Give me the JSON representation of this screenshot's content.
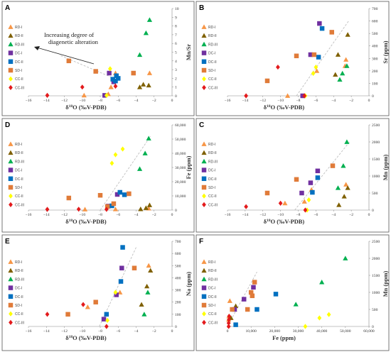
{
  "figure": {
    "series_styles": [
      {
        "name": "RD-I",
        "marker": "triangle",
        "color": "#F79646"
      },
      {
        "name": "RD-II",
        "marker": "triangle",
        "color": "#7F6000"
      },
      {
        "name": "RD-III",
        "marker": "triangle",
        "color": "#00B050"
      },
      {
        "name": "DC-I",
        "marker": "square",
        "color": "#7030A0"
      },
      {
        "name": "DC-II",
        "marker": "square",
        "color": "#0070C0"
      },
      {
        "name": "SD-I",
        "marker": "square",
        "color": "#E07B39"
      },
      {
        "name": "CC-II",
        "marker": "diamond",
        "color": "#FFFF00"
      },
      {
        "name": "CC-III",
        "marker": "diamond",
        "color": "#E31A1C"
      }
    ]
  },
  "chart_data": [
    {
      "id": "A",
      "type": "scatter",
      "xlabel": "δ18O (‰V-PDB)",
      "ylabel": "Mn/Sr",
      "xlim": [
        -16,
        0
      ],
      "ylim": [
        0,
        10
      ],
      "xticks": [
        "−16",
        "−14",
        "−12",
        "−10",
        "−8",
        "−6",
        "−4",
        "−2"
      ],
      "yticks": [
        "0",
        "1",
        "2",
        "3",
        "4",
        "5",
        "6",
        "7",
        "8",
        "9",
        "10"
      ],
      "annotation": "Increasing degree of diagenetic alteration",
      "series": [
        {
          "name": "RD-I",
          "points": [
            [
              -9.8,
              0.05
            ],
            [
              -7.1,
              0.2
            ],
            [
              -6.3,
              2.6
            ],
            [
              -2.5,
              2.6
            ],
            [
              -6.8,
              1.0
            ]
          ]
        },
        {
          "name": "RD-II",
          "points": [
            [
              -3.6,
              1.0
            ],
            [
              -3.2,
              1.3
            ],
            [
              -2.6,
              1.2
            ]
          ]
        },
        {
          "name": "RD-III",
          "points": [
            [
              -3.6,
              4.7
            ],
            [
              -2.9,
              7.2
            ],
            [
              -2.5,
              8.7
            ]
          ]
        },
        {
          "name": "DC-I",
          "points": [
            [
              -7.5,
              0.05
            ],
            [
              -7.0,
              2.6
            ],
            [
              -6.5,
              1.6
            ]
          ]
        },
        {
          "name": "DC-II",
          "points": [
            [
              -6.6,
              1.9
            ],
            [
              -6.3,
              1.7
            ],
            [
              -6.0,
              2.0
            ],
            [
              -6.2,
              2.3
            ]
          ]
        },
        {
          "name": "SD-I",
          "points": [
            [
              -11.5,
              4.0
            ],
            [
              -8.5,
              2.8
            ],
            [
              -4.3,
              2.6
            ]
          ]
        },
        {
          "name": "CC-II",
          "points": [
            [
              -7.3,
              0.05
            ],
            [
              -6.9,
              3.1
            ]
          ]
        },
        {
          "name": "CC-III",
          "points": [
            [
              -13.9,
              0.05
            ],
            [
              -10.0,
              1.0
            ],
            [
              -6.3,
              1.1
            ]
          ]
        }
      ]
    },
    {
      "id": "B",
      "type": "scatter",
      "xlabel": "δ18O (‰V-PDB)",
      "ylabel": "Sr (ppm)",
      "xlim": [
        -16,
        0
      ],
      "ylim": [
        0,
        700
      ],
      "xticks": [
        "−16",
        "−14",
        "−12",
        "−10",
        "−8",
        "−6",
        "−4",
        "−2"
      ],
      "yticks": [
        "0",
        "100",
        "200",
        "300",
        "400",
        "500",
        "600",
        "700"
      ],
      "series": [
        {
          "name": "RD-I",
          "points": [
            [
              -9.2,
              0
            ],
            [
              -5.9,
              200
            ],
            [
              -2.6,
              290
            ],
            [
              -2.7,
              240
            ]
          ]
        },
        {
          "name": "RD-II",
          "points": [
            [
              -3.5,
              330
            ],
            [
              -3.8,
              170
            ],
            [
              -2.4,
              490
            ]
          ]
        },
        {
          "name": "RD-III",
          "points": [
            [
              -3.0,
              180
            ],
            [
              -3.3,
              130
            ],
            [
              -2.5,
              240
            ]
          ]
        },
        {
          "name": "DC-I",
          "points": [
            [
              -7.5,
              0
            ],
            [
              -6.6,
              330
            ],
            [
              -5.6,
              580
            ]
          ]
        },
        {
          "name": "DC-II",
          "points": [
            [
              -5.7,
              310
            ],
            [
              -5.3,
              540
            ]
          ]
        },
        {
          "name": "SD-I",
          "points": [
            [
              -11.5,
              120
            ],
            [
              -8.2,
              320
            ],
            [
              -6.2,
              330
            ],
            [
              -4.2,
              510
            ]
          ]
        },
        {
          "name": "CC-II",
          "points": [
            [
              -7.2,
              0
            ],
            [
              -6.3,
              180
            ],
            [
              -6.0,
              230
            ]
          ]
        },
        {
          "name": "CC-III",
          "points": [
            [
              -13.9,
              0
            ],
            [
              -10.3,
              230
            ],
            [
              -7.3,
              0
            ]
          ]
        }
      ]
    },
    {
      "id": "D",
      "type": "scatter",
      "xlabel": "δ18O (‰V-PDB)",
      "ylabel": "Fe (ppm)",
      "xlim": [
        -16,
        0
      ],
      "ylim": [
        0,
        60000
      ],
      "xticks": [
        "−16",
        "−14",
        "−12",
        "−10",
        "−8",
        "−6",
        "−4",
        "−2"
      ],
      "yticks": [
        "0",
        "10,000",
        "20,000",
        "30,000",
        "40,000",
        "50,000",
        "60,000"
      ],
      "series": [
        {
          "name": "RD-I",
          "points": [
            [
              -9.7,
              500
            ],
            [
              -6.3,
              600
            ],
            [
              -2.6,
              1200
            ]
          ]
        },
        {
          "name": "RD-II",
          "points": [
            [
              -3.5,
              700
            ],
            [
              -2.9,
              1500
            ],
            [
              -2.5,
              3500
            ]
          ]
        },
        {
          "name": "RD-III",
          "points": [
            [
              -3.6,
              29000
            ],
            [
              -3.0,
              40000
            ],
            [
              -2.6,
              50500
            ]
          ]
        },
        {
          "name": "DC-I",
          "points": [
            [
              -6.1,
              11000
            ],
            [
              -7.1,
              2800
            ]
          ]
        },
        {
          "name": "DC-II",
          "points": [
            [
              -5.8,
              12500
            ],
            [
              -6.7,
              3000
            ],
            [
              -5.3,
              10800
            ]
          ]
        },
        {
          "name": "SD-I",
          "points": [
            [
              -11.5,
              8500
            ],
            [
              -8.0,
              10400
            ],
            [
              -4.8,
              11500
            ],
            [
              -6.5,
              4500
            ],
            [
              -7.2,
              2500
            ]
          ]
        },
        {
          "name": "CC-II",
          "points": [
            [
              -6.7,
              33000
            ],
            [
              -6.3,
              39000
            ],
            [
              -5.5,
              43000
            ]
          ]
        },
        {
          "name": "CC-III",
          "points": [
            [
              -13.9,
              500
            ],
            [
              -10.4,
              600
            ],
            [
              -7.3,
              500
            ]
          ]
        }
      ]
    },
    {
      "id": "C",
      "type": "scatter",
      "xlabel": "δ18O (‰V-PDB)",
      "ylabel": "Mn (ppm)",
      "xlim": [
        -16,
        0
      ],
      "ylim": [
        0,
        2500
      ],
      "xticks": [
        "−16",
        "−14",
        "−12",
        "−10",
        "−8",
        "−6",
        "−4",
        "−2"
      ],
      "yticks": [
        "0",
        "500",
        "1000",
        "1500",
        "2000",
        "2500"
      ],
      "series": [
        {
          "name": "RD-I",
          "points": [
            [
              -9.5,
              200
            ],
            [
              -7.3,
              250
            ],
            [
              -6.5,
              600
            ],
            [
              -2.6,
              750
            ]
          ]
        },
        {
          "name": "RD-II",
          "points": [
            [
              -3.4,
              150
            ],
            [
              -2.8,
              400
            ],
            [
              -2.4,
              650
            ]
          ]
        },
        {
          "name": "RD-III",
          "points": [
            [
              -3.5,
              650
            ],
            [
              -2.9,
              1300
            ],
            [
              -2.5,
              2000
            ]
          ]
        },
        {
          "name": "DC-I",
          "points": [
            [
              -7.6,
              500
            ],
            [
              -6.6,
              800
            ],
            [
              -5.8,
              1150
            ]
          ]
        },
        {
          "name": "DC-II",
          "points": [
            [
              -6.4,
              520
            ],
            [
              -5.8,
              950
            ]
          ]
        },
        {
          "name": "SD-I",
          "points": [
            [
              -11.5,
              500
            ],
            [
              -8.2,
              900
            ],
            [
              -4.1,
              1300
            ]
          ]
        },
        {
          "name": "CC-II",
          "points": [
            [
              -7.0,
              0
            ],
            [
              -6.8,
              300
            ]
          ]
        },
        {
          "name": "CC-III",
          "points": [
            [
              -13.9,
              100
            ],
            [
              -10.0,
              200
            ],
            [
              -7.2,
              0
            ]
          ]
        }
      ]
    },
    {
      "id": "E",
      "type": "scatter",
      "xlabel": "δ18O (‰V-PDB)",
      "ylabel": "Na (ppm)",
      "xlim": [
        -16,
        0
      ],
      "ylim": [
        0,
        700
      ],
      "xticks": [
        "−16",
        "−14",
        "−12",
        "−10",
        "−8",
        "−6",
        "−4",
        "−2"
      ],
      "yticks": [
        "0",
        "100",
        "200",
        "300",
        "400",
        "500",
        "600",
        "700"
      ],
      "series": [
        {
          "name": "RD-I",
          "points": [
            [
              -9.4,
              160
            ],
            [
              -5.8,
              280
            ],
            [
              -2.6,
              500
            ]
          ]
        },
        {
          "name": "RD-II",
          "points": [
            [
              -3.4,
              180
            ],
            [
              -2.8,
              330
            ],
            [
              -2.4,
              460
            ]
          ]
        },
        {
          "name": "RD-III",
          "points": [
            [
              -3.1,
              100
            ],
            [
              -2.7,
              280
            ]
          ]
        },
        {
          "name": "DC-I",
          "points": [
            [
              -6.2,
              260
            ],
            [
              -5.6,
              480
            ],
            [
              -7.6,
              60
            ]
          ]
        },
        {
          "name": "DC-II",
          "points": [
            [
              -5.5,
              650
            ],
            [
              -5.7,
              370
            ],
            [
              -7.3,
              100
            ]
          ]
        },
        {
          "name": "SD-I",
          "points": [
            [
              -11.6,
              100
            ],
            [
              -8.5,
              200
            ],
            [
              -4.2,
              480
            ]
          ]
        },
        {
          "name": "CC-II",
          "points": [
            [
              -7.2,
              50
            ],
            [
              -6.3,
              280
            ]
          ]
        },
        {
          "name": "CC-III",
          "points": [
            [
              -13.9,
              100
            ],
            [
              -9.9,
              180
            ],
            [
              -7.3,
              0
            ]
          ]
        }
      ]
    },
    {
      "id": "F",
      "type": "scatter",
      "xlabel": "Fe (ppm)",
      "ylabel": "Mn (ppm)",
      "xlim": [
        0,
        60000
      ],
      "ylim": [
        0,
        2500
      ],
      "xticks": [
        "0",
        "10,000",
        "20,000",
        "30,000",
        "40,000",
        "50,000",
        "60,000"
      ],
      "yticks": [
        "0",
        "500",
        "1000",
        "1500",
        "2000",
        "2500"
      ],
      "series": [
        {
          "name": "RD-I",
          "points": [
            [
              500,
              200
            ],
            [
              1000,
              750
            ],
            [
              600,
              300
            ]
          ]
        },
        {
          "name": "RD-II",
          "points": [
            [
              1500,
              250
            ],
            [
              3000,
              500
            ],
            [
              3500,
              600
            ]
          ]
        },
        {
          "name": "RD-III",
          "points": [
            [
              29000,
              650
            ],
            [
              40000,
              1300
            ],
            [
              50000,
              2000
            ]
          ]
        },
        {
          "name": "DC-I",
          "points": [
            [
              3000,
              500
            ],
            [
              7000,
              800
            ],
            [
              11000,
              1150
            ]
          ]
        },
        {
          "name": "DC-II",
          "points": [
            [
              3500,
              50
            ],
            [
              12500,
              500
            ],
            [
              20500,
              950
            ]
          ]
        },
        {
          "name": "SD-I",
          "points": [
            [
              2000,
              500
            ],
            [
              8500,
              500
            ],
            [
              10500,
              900
            ],
            [
              11500,
              1300
            ],
            [
              10000,
              1000
            ]
          ]
        },
        {
          "name": "CC-II",
          "points": [
            [
              33000,
              0
            ],
            [
              39000,
              250
            ],
            [
              43000,
              350
            ]
          ]
        },
        {
          "name": "CC-III",
          "points": [
            [
              500,
              100
            ],
            [
              600,
              200
            ],
            [
              500,
              0
            ],
            [
              700,
              300
            ]
          ]
        }
      ]
    }
  ]
}
